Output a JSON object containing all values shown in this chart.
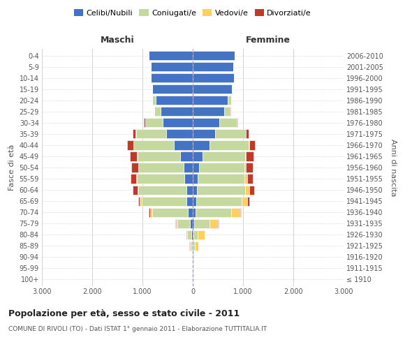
{
  "age_groups": [
    "100+",
    "95-99",
    "90-94",
    "85-89",
    "80-84",
    "75-79",
    "70-74",
    "65-69",
    "60-64",
    "55-59",
    "50-54",
    "45-49",
    "40-44",
    "35-39",
    "30-34",
    "25-29",
    "20-24",
    "15-19",
    "10-14",
    "5-9",
    "0-4"
  ],
  "birth_years": [
    "≤ 1910",
    "1911-1915",
    "1916-1920",
    "1921-1925",
    "1926-1930",
    "1931-1935",
    "1936-1940",
    "1941-1945",
    "1946-1950",
    "1951-1955",
    "1956-1960",
    "1961-1965",
    "1966-1970",
    "1971-1975",
    "1976-1980",
    "1981-1985",
    "1986-1990",
    "1991-1995",
    "1996-2000",
    "2001-2005",
    "2006-2010"
  ],
  "maschi": {
    "celibi": [
      0,
      2,
      5,
      15,
      30,
      50,
      100,
      120,
      130,
      160,
      180,
      250,
      380,
      530,
      600,
      640,
      740,
      800,
      840,
      840,
      870
    ],
    "coniugati": [
      0,
      2,
      8,
      30,
      80,
      250,
      700,
      900,
      950,
      950,
      900,
      850,
      800,
      600,
      350,
      120,
      60,
      10,
      0,
      0,
      0
    ],
    "vedovi": [
      0,
      2,
      5,
      15,
      30,
      40,
      50,
      30,
      20,
      10,
      10,
      5,
      5,
      5,
      0,
      0,
      0,
      0,
      0,
      0,
      0
    ],
    "divorziati": [
      0,
      0,
      0,
      5,
      5,
      10,
      20,
      30,
      100,
      120,
      130,
      150,
      120,
      60,
      20,
      5,
      0,
      0,
      0,
      0,
      0
    ]
  },
  "femmine": {
    "nubili": [
      0,
      3,
      5,
      10,
      20,
      30,
      60,
      70,
      90,
      100,
      130,
      200,
      330,
      450,
      530,
      620,
      700,
      780,
      820,
      800,
      830
    ],
    "coniugate": [
      0,
      2,
      8,
      30,
      80,
      300,
      700,
      900,
      950,
      930,
      900,
      840,
      780,
      600,
      340,
      120,
      60,
      10,
      0,
      0,
      0
    ],
    "vedove": [
      0,
      5,
      20,
      70,
      130,
      170,
      180,
      120,
      80,
      50,
      30,
      20,
      10,
      5,
      5,
      0,
      0,
      0,
      0,
      0,
      0
    ],
    "divorziate": [
      0,
      0,
      0,
      5,
      5,
      10,
      20,
      30,
      100,
      120,
      130,
      150,
      120,
      60,
      20,
      5,
      0,
      0,
      0,
      0,
      0
    ]
  },
  "color_celibi": "#4472C4",
  "color_coniugati": "#C5D8A0",
  "color_vedovi": "#FFD060",
  "color_divorziati": "#C0392B",
  "xlim": 3000,
  "title": "Popolazione per età, sesso e stato civile - 2011",
  "subtitle": "COMUNE DI RIVOLI (TO) - Dati ISTAT 1° gennaio 2011 - Elaborazione TUTTITALIA.IT",
  "ylabel_left": "Fasce di età",
  "ylabel_right": "Anni di nascita",
  "xlabel_maschi": "Maschi",
  "xlabel_femmine": "Femmine"
}
